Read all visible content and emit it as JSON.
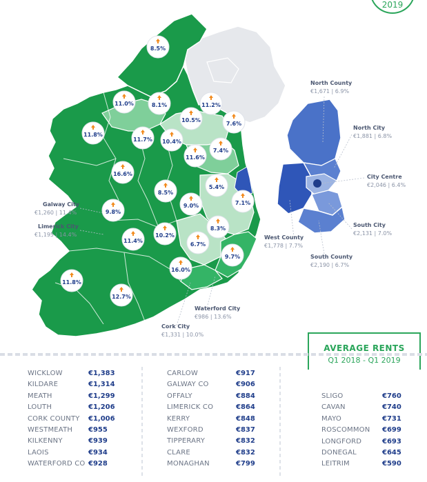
{
  "badge_year": "2019",
  "legend": {
    "title": "AVERAGE RENTS",
    "subtitle": "Q1 2018 - Q1 2019"
  },
  "bubbles": [
    "8.5%",
    "11.0%",
    "8.1%",
    "11.2%",
    "10.5%",
    "7.6%",
    "11.8%",
    "11.7%",
    "10.4%",
    "11.6%",
    "7.4%",
    "16.6%",
    "8.5%",
    "5.4%",
    "9.0%",
    "7.1%",
    "9.8%",
    "8.3%",
    "10.2%",
    "11.4%",
    "6.7%",
    "9.7%",
    "16.0%",
    "11.8%",
    "12.7%"
  ],
  "areas": {
    "galway_city": {
      "name": "Galway City",
      "value": "€1,260 | 11.4%"
    },
    "limerick_city": {
      "name": "Limerick City",
      "value": "€1,195 | 14.4%"
    },
    "waterford_city": {
      "name": "Waterford City",
      "value": "€986 | 13.6%"
    },
    "cork_city": {
      "name": "Cork City",
      "value": "€1,331 | 10.0%"
    },
    "north_county": {
      "name": "North County",
      "value": "€1,671 | 6.9%"
    },
    "north_city": {
      "name": "North City",
      "value": "€1,881 | 6.8%"
    },
    "city_centre": {
      "name": "City Centre",
      "value": "€2,046 | 6.4%"
    },
    "south_city": {
      "name": "South City",
      "value": "€2,131 | 7.0%"
    },
    "west_county": {
      "name": "West County",
      "value": "€1,778 | 7.7%"
    },
    "south_county": {
      "name": "South County",
      "value": "€2,190 | 6.7%"
    }
  },
  "rents": {
    "col1": [
      {
        "county": "WICKLOW",
        "price": "€1,383"
      },
      {
        "county": "KILDARE",
        "price": "€1,314"
      },
      {
        "county": "MEATH",
        "price": "€1,299"
      },
      {
        "county": "LOUTH",
        "price": "€1,206"
      },
      {
        "county": "CORK COUNTY",
        "price": "€1,006"
      },
      {
        "county": "WESTMEATH",
        "price": "€955"
      },
      {
        "county": "KILKENNY",
        "price": "€939"
      },
      {
        "county": "LAOIS",
        "price": "€934"
      },
      {
        "county": "WATERFORD CO",
        "price": "€928"
      }
    ],
    "col2": [
      {
        "county": "CARLOW",
        "price": "€917"
      },
      {
        "county": "GALWAY CO",
        "price": "€906"
      },
      {
        "county": "OFFALY",
        "price": "€884"
      },
      {
        "county": "LIMERICK CO",
        "price": "€864"
      },
      {
        "county": "KERRY",
        "price": "€848"
      },
      {
        "county": "WEXFORD",
        "price": "€837"
      },
      {
        "county": "TIPPERARY",
        "price": "€832"
      },
      {
        "county": "CLARE",
        "price": "€832"
      },
      {
        "county": "MONAGHAN",
        "price": "€799"
      }
    ],
    "col3": [
      {
        "county": "SLIGO",
        "price": "€760"
      },
      {
        "county": "CAVAN",
        "price": "€740"
      },
      {
        "county": "MAYO",
        "price": "€731"
      },
      {
        "county": "ROSCOMMON",
        "price": "€699"
      },
      {
        "county": "LONGFORD",
        "price": "€693"
      },
      {
        "county": "DONEGAL",
        "price": "€645"
      },
      {
        "county": "LEITRIM",
        "price": "€590"
      }
    ]
  },
  "colors": {
    "dark_green": "#1a9a4a",
    "mid_green": "#34b466",
    "light_green": "#7fcf9a",
    "pale_green": "#b9e3c6",
    "grey": "#e6e8ec",
    "blue_dark": "#2f56b8",
    "blue_mid": "#5077cc",
    "blue_light": "#9bb3e3",
    "accent_orange": "#f28a1c"
  },
  "icons": {
    "bubble_marker": "arrow-up-icon"
  }
}
